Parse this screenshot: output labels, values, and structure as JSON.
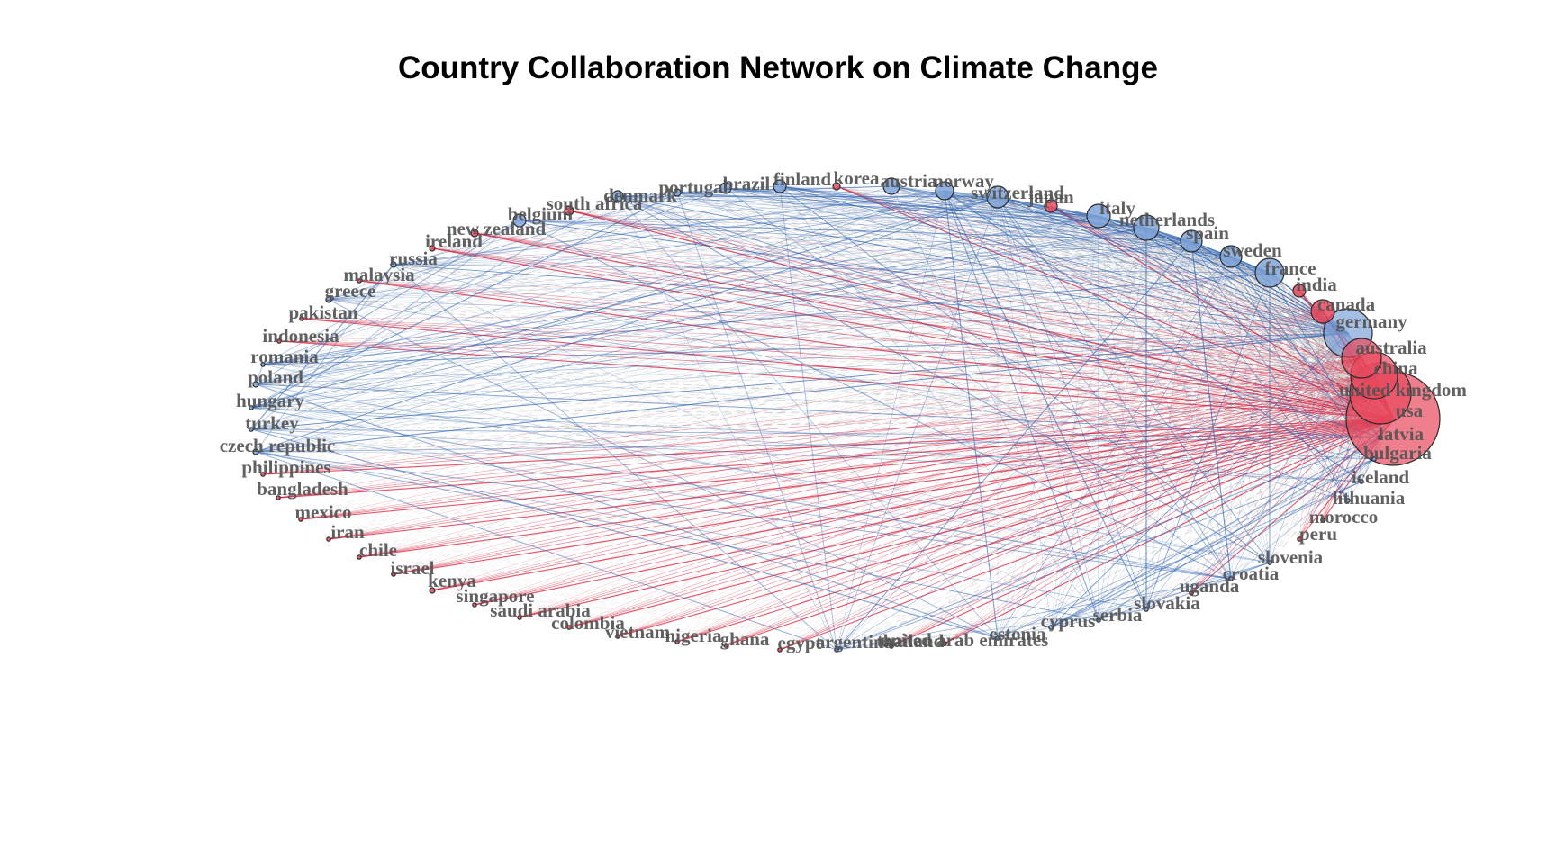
{
  "title": "Country Collaboration Network on Climate Change",
  "colors": {
    "cluster_1": "#2f63b0",
    "cluster_2": "#d8102c",
    "cross_cluster_edge": "#888888",
    "node_fill_1": "#7fa3d8",
    "node_fill_2": "#e8485c",
    "label": "#545454"
  },
  "nodes": [
    {
      "name": "usa",
      "group": 2,
      "size": 52
    },
    {
      "name": "united kingdom",
      "group": 2,
      "size": 34
    },
    {
      "name": "china",
      "group": 2,
      "size": 26
    },
    {
      "name": "australia",
      "group": 2,
      "size": 22
    },
    {
      "name": "germany",
      "group": 1,
      "size": 27
    },
    {
      "name": "canada",
      "group": 2,
      "size": 13
    },
    {
      "name": "india",
      "group": 2,
      "size": 7
    },
    {
      "name": "france",
      "group": 1,
      "size": 16
    },
    {
      "name": "sweden",
      "group": 1,
      "size": 12
    },
    {
      "name": "spain",
      "group": 1,
      "size": 12
    },
    {
      "name": "netherlands",
      "group": 1,
      "size": 14
    },
    {
      "name": "italy",
      "group": 1,
      "size": 13
    },
    {
      "name": "japan",
      "group": 2,
      "size": 7
    },
    {
      "name": "switzerland",
      "group": 1,
      "size": 12
    },
    {
      "name": "norway",
      "group": 1,
      "size": 10
    },
    {
      "name": "austria",
      "group": 1,
      "size": 9
    },
    {
      "name": "korea",
      "group": 2,
      "size": 4
    },
    {
      "name": "finland",
      "group": 1,
      "size": 7
    },
    {
      "name": "brazil",
      "group": 1,
      "size": 6
    },
    {
      "name": "portugal",
      "group": 1,
      "size": 4
    },
    {
      "name": "denmark",
      "group": 1,
      "size": 6
    },
    {
      "name": "south africa",
      "group": 2,
      "size": 5
    },
    {
      "name": "belgium",
      "group": 1,
      "size": 7
    },
    {
      "name": "new zealand",
      "group": 2,
      "size": 4
    },
    {
      "name": "ireland",
      "group": 2,
      "size": 3
    },
    {
      "name": "russia",
      "group": 1,
      "size": 3
    },
    {
      "name": "malaysia",
      "group": 2,
      "size": 2
    },
    {
      "name": "greece",
      "group": 1,
      "size": 3
    },
    {
      "name": "pakistan",
      "group": 2,
      "size": 2
    },
    {
      "name": "indonesia",
      "group": 2,
      "size": 2
    },
    {
      "name": "romania",
      "group": 1,
      "size": 2
    },
    {
      "name": "poland",
      "group": 1,
      "size": 3
    },
    {
      "name": "hungary",
      "group": 1,
      "size": 2
    },
    {
      "name": "turkey",
      "group": 1,
      "size": 2
    },
    {
      "name": "czech republic",
      "group": 1,
      "size": 3
    },
    {
      "name": "philippines",
      "group": 2,
      "size": 2
    },
    {
      "name": "bangladesh",
      "group": 2,
      "size": 2
    },
    {
      "name": "mexico",
      "group": 2,
      "size": 2
    },
    {
      "name": "iran",
      "group": 2,
      "size": 2
    },
    {
      "name": "chile",
      "group": 2,
      "size": 2
    },
    {
      "name": "israel",
      "group": 2,
      "size": 2
    },
    {
      "name": "kenya",
      "group": 2,
      "size": 3
    },
    {
      "name": "singapore",
      "group": 2,
      "size": 2
    },
    {
      "name": "saudi arabia",
      "group": 2,
      "size": 2
    },
    {
      "name": "colombia",
      "group": 2,
      "size": 2
    },
    {
      "name": "vietnam",
      "group": 2,
      "size": 1
    },
    {
      "name": "nigeria",
      "group": 2,
      "size": 1
    },
    {
      "name": "ghana",
      "group": 2,
      "size": 1
    },
    {
      "name": "egypt",
      "group": 2,
      "size": 1
    },
    {
      "name": "argentina",
      "group": 1,
      "size": 1
    },
    {
      "name": "thailand",
      "group": 2,
      "size": 1
    },
    {
      "name": "united arab emirates",
      "group": 2,
      "size": 1
    },
    {
      "name": "estonia",
      "group": 1,
      "size": 1
    },
    {
      "name": "cyprus",
      "group": 1,
      "size": 1
    },
    {
      "name": "serbia",
      "group": 1,
      "size": 1
    },
    {
      "name": "slovakia",
      "group": 1,
      "size": 1
    },
    {
      "name": "uganda",
      "group": 2,
      "size": 1
    },
    {
      "name": "croatia",
      "group": 1,
      "size": 1
    },
    {
      "name": "slovenia",
      "group": 1,
      "size": 1
    },
    {
      "name": "peru",
      "group": 2,
      "size": 1
    },
    {
      "name": "morocco",
      "group": 2,
      "size": 1
    },
    {
      "name": "lithuania",
      "group": 1,
      "size": 1
    },
    {
      "name": "iceland",
      "group": 1,
      "size": 1
    },
    {
      "name": "bulgaria",
      "group": 1,
      "size": 1
    },
    {
      "name": "latvia",
      "group": 1,
      "size": 1
    }
  ]
}
